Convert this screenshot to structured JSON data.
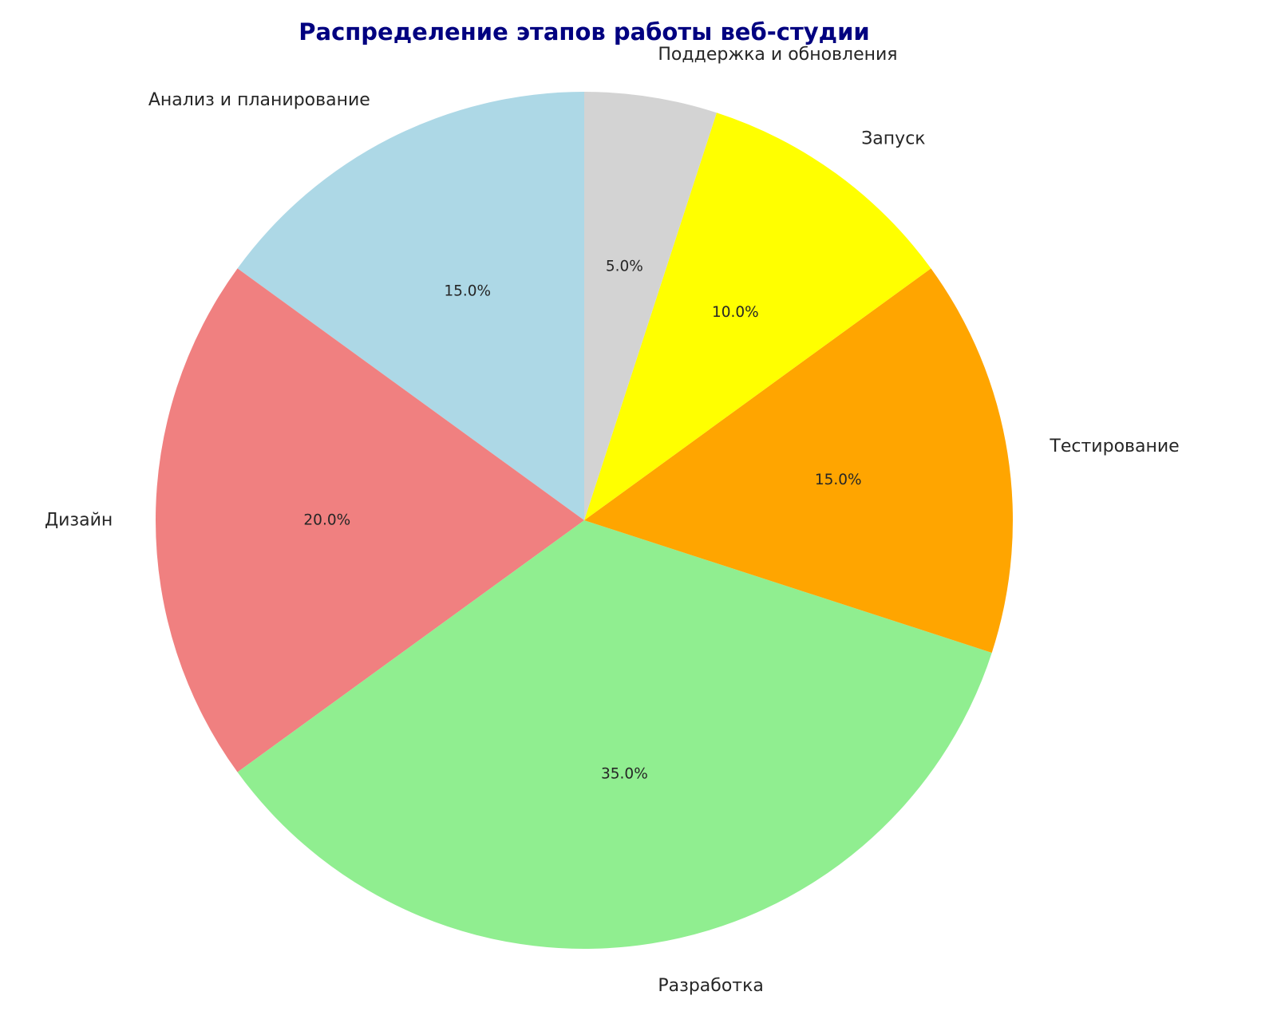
{
  "chart_data": {
    "type": "pie",
    "title": "Распределение этапов работы веб-студии",
    "title_color": "#000080",
    "start_angle": 90,
    "direction": "counterclockwise",
    "categories": [
      "Анализ и планирование",
      "Дизайн",
      "Разработка",
      "Тестирование",
      "Запуск",
      "Поддержка и обновления"
    ],
    "values": [
      15,
      20,
      35,
      15,
      10,
      5
    ],
    "value_labels": [
      "15.0%",
      "20.0%",
      "35.0%",
      "15.0%",
      "10.0%",
      "5.0%"
    ],
    "colors": [
      "#ADD8E6",
      "#F08080",
      "#90EE90",
      "#FFA500",
      "#FFFF00",
      "#D3D3D3"
    ]
  }
}
